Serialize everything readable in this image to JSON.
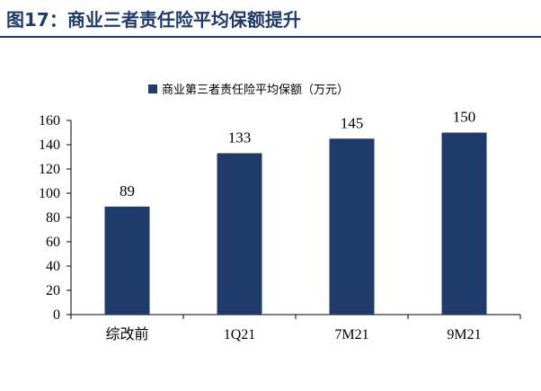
{
  "figure": {
    "title": "图17：商业三者责任险平均保额提升"
  },
  "colors": {
    "title": "#1f3b6b",
    "bar": "#1f3b6b",
    "axis": "#000000"
  },
  "chart_data": {
    "type": "bar",
    "title": "",
    "categories": [
      "综改前",
      "1Q21",
      "7M21",
      "9M21"
    ],
    "series": [
      {
        "name": "商业第三者责任险平均保额（万元）",
        "values": [
          89,
          133,
          145,
          150
        ]
      }
    ],
    "data_labels": [
      "89",
      "133",
      "145",
      "150"
    ],
    "ylim": [
      0,
      160
    ],
    "yticks": [
      0,
      20,
      40,
      60,
      80,
      100,
      120,
      140,
      160
    ],
    "xlabel": "",
    "ylabel": "",
    "grid": false,
    "legend": "top-center"
  }
}
